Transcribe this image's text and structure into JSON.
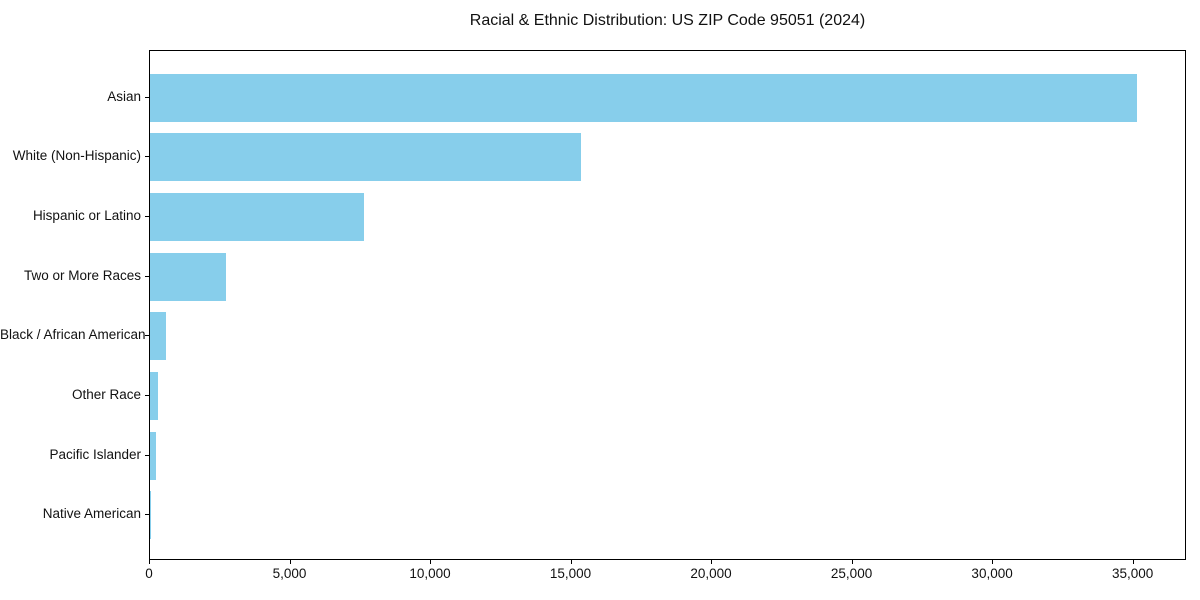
{
  "chart_data": {
    "type": "bar",
    "orientation": "horizontal",
    "title": "Racial & Ethnic Distribution: US ZIP Code 95051 (2024)",
    "categories": [
      "Asian",
      "White (Non-Hispanic)",
      "Hispanic or Latino",
      "Two or More Races",
      "Black / African American",
      "Other Race",
      "Pacific Islander",
      "Native American"
    ],
    "values": [
      35130,
      15350,
      7620,
      2720,
      580,
      275,
      200,
      40
    ],
    "xlabel": "",
    "ylabel": "",
    "xlim": [
      0,
      36900
    ],
    "x_ticks": [
      0,
      5000,
      10000,
      15000,
      20000,
      25000,
      30000,
      35000
    ],
    "x_tick_labels": [
      "0",
      "5,000",
      "10,000",
      "15,000",
      "20,000",
      "25,000",
      "30,000",
      "35,000"
    ],
    "bar_color": "#87CEEB",
    "grid": false,
    "legend": null,
    "plot_border_color": "#000000",
    "background_color": "#ffffff"
  }
}
